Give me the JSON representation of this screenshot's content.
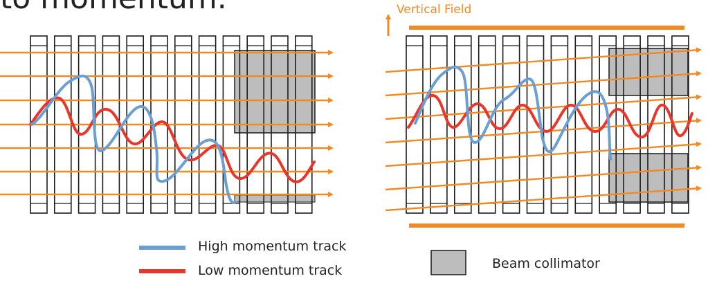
{
  "heading_partial": "to momentum.",
  "field_label": "Vertical Field",
  "legend": {
    "high": "High momentum track",
    "low": "Low momentum track",
    "collimator": "Beam collimator"
  },
  "colors": {
    "field": "#f08a24",
    "high_track": "#6a9fd4",
    "low_track": "#e8372a",
    "collimator": "#bdbdbd",
    "outline": "#1a1a1a"
  }
}
